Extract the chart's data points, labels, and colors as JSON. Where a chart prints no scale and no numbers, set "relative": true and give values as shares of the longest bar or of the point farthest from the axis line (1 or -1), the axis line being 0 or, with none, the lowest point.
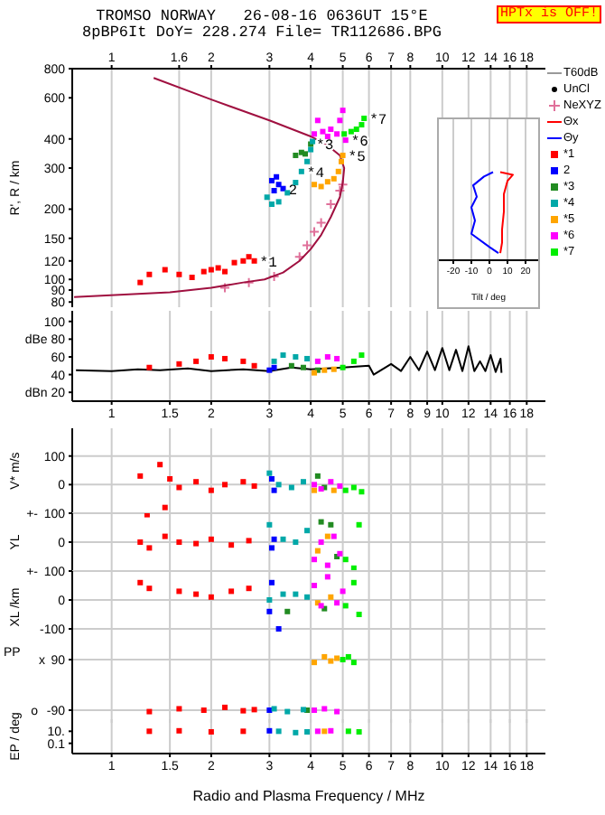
{
  "chart_data": [
    {
      "type": "scatter",
      "title": "TROMSO NORWAY   26-08-16 0636UT 15°E",
      "subtitle": "8pBP6It DoY= 228.274 File= TR112686.BPG",
      "annotations": [
        "HPTx is OFF!"
      ],
      "ylabel": "R', R / km",
      "log": "xy",
      "xlim": [
        0.76,
        20.5
      ],
      "ylim": [
        76,
        800
      ],
      "xticks": [
        1,
        1.6,
        2,
        3,
        4,
        5,
        6,
        7,
        8,
        10,
        12,
        14,
        16,
        18
      ],
      "yticks": [
        80,
        90,
        100,
        120,
        150,
        200,
        300,
        400,
        600,
        800
      ],
      "grid": "x",
      "legend": "right",
      "series": [
        {
          "name": "T60dB",
          "type": "line",
          "color": "#999999"
        },
        {
          "name": "UnCl",
          "type": "scatter",
          "marker": "circle",
          "color": "#000000"
        },
        {
          "name": "NeXYZ",
          "type": "scatter",
          "marker": "cross",
          "color": "#e0709a",
          "x": [
            2.2,
            2.6,
            3.1,
            3.7,
            3.9,
            4.1,
            4.3,
            4.6,
            4.9,
            5.0
          ],
          "values": [
            92,
            97,
            103,
            125,
            140,
            160,
            175,
            210,
            240,
            255
          ]
        },
        {
          "type": "line",
          "marker": "none",
          "color": "#a01040",
          "x": [
            0.77,
            1.5,
            2.0,
            2.5,
            2.9,
            3.3,
            3.7,
            4.0,
            4.3,
            4.6,
            4.9,
            5.0,
            5.05,
            4.9,
            4.5,
            4.0,
            3.0,
            2.0,
            1.34
          ],
          "values": [
            84,
            88,
            92,
            97,
            100,
            107,
            120,
            135,
            155,
            185,
            225,
            260,
            300,
            340,
            375,
            410,
            480,
            590,
            730
          ]
        },
        {
          "name": "*1",
          "marker": "square",
          "color": "#ff0000",
          "x": [
            1.22,
            1.3,
            1.45,
            1.6,
            1.75,
            1.9,
            2.0,
            2.1,
            2.2,
            2.35,
            2.5,
            2.6,
            2.7
          ],
          "values": [
            97,
            105,
            110,
            105,
            102,
            108,
            110,
            112,
            108,
            118,
            120,
            125,
            120
          ]
        },
        {
          "name": "2",
          "marker": "square",
          "color": "#0000ff",
          "x": [
            3.05,
            3.15,
            3.2,
            3.1,
            3.3
          ],
          "values": [
            265,
            275,
            255,
            240,
            245
          ]
        },
        {
          "name": "*3",
          "marker": "square",
          "color": "#228b22",
          "x": [
            3.6,
            3.75,
            3.85,
            4.0
          ],
          "values": [
            340,
            350,
            345,
            380
          ]
        },
        {
          "name": "*4",
          "marker": "square",
          "color": "#00a8a8",
          "x": [
            2.95,
            3.05,
            3.2,
            3.4,
            3.6,
            3.9,
            4.0,
            4.05,
            3.75
          ],
          "values": [
            225,
            210,
            215,
            235,
            260,
            320,
            360,
            390,
            290
          ]
        },
        {
          "name": "*5",
          "marker": "square",
          "color": "#ffa500",
          "x": [
            4.1,
            4.3,
            4.5,
            4.7,
            4.85,
            4.95,
            5.0
          ],
          "values": [
            255,
            250,
            262,
            270,
            290,
            320,
            340
          ]
        },
        {
          "name": "*6",
          "marker": "square",
          "color": "#ff00ff",
          "x": [
            4.1,
            4.2,
            4.35,
            4.5,
            4.6,
            4.8,
            4.9,
            5.0,
            5.1
          ],
          "values": [
            420,
            480,
            430,
            410,
            440,
            420,
            480,
            530,
            395
          ]
        },
        {
          "name": "*7",
          "marker": "square",
          "color": "#00ee00",
          "x": [
            5.05,
            5.3,
            5.5,
            5.7,
            5.8
          ],
          "values": [
            420,
            430,
            440,
            460,
            490
          ]
        }
      ]
    },
    {
      "type": "line",
      "xlabel": "Tilt / deg",
      "relative": true,
      "xlim": [
        -28,
        27
      ],
      "xticks": [
        -20,
        -10,
        0,
        10,
        20
      ],
      "grid": "x",
      "legend": "right",
      "series": [
        {
          "name": "Θx",
          "color": "#ff0000",
          "x": [
            6,
            7,
            7,
            8,
            8,
            10,
            13,
            6
          ],
          "values": [
            0.08,
            0.2,
            0.35,
            0.55,
            0.75,
            0.9,
            0.97,
            1.0
          ]
        },
        {
          "name": "Θy",
          "color": "#0000ff",
          "x": [
            5,
            0,
            -10,
            -8,
            -10,
            -7,
            -9,
            -3,
            2
          ],
          "values": [
            0.08,
            0.15,
            0.3,
            0.45,
            0.6,
            0.72,
            0.85,
            0.95,
            1.0
          ]
        }
      ]
    },
    {
      "type": "scatter",
      "log": "x",
      "xlim": [
        0.76,
        20.5
      ],
      "ylim": [
        10,
        112
      ],
      "xticks": [
        1,
        1.5,
        2,
        3,
        4,
        5,
        6,
        7,
        8,
        9,
        10,
        12,
        14,
        16,
        18
      ],
      "yticks": [
        100,
        {
          "value": 80,
          "label": "dBe 80"
        },
        60,
        40,
        {
          "value": 20,
          "label": "dBn 20"
        }
      ],
      "grid": "x",
      "series": [
        {
          "type": "line",
          "color": "#000000",
          "x": [
            0.78,
            1,
            1.2,
            1.4,
            1.7,
            2,
            2.5,
            3,
            3.5,
            4,
            5,
            6,
            6.2,
            7,
            7.5,
            8,
            8.5,
            9,
            9.5,
            10,
            10.5,
            11,
            11.5,
            12,
            12.5,
            13,
            13.5,
            14,
            14.5,
            15,
            15.1
          ],
          "values": [
            45,
            44,
            46,
            45,
            47,
            44,
            46,
            44,
            48,
            46,
            48,
            50,
            40,
            52,
            44,
            60,
            45,
            66,
            45,
            70,
            45,
            68,
            44,
            72,
            44,
            55,
            44,
            62,
            43,
            58,
            42
          ]
        },
        {
          "marker": "square",
          "color": "#ff0000",
          "x": [
            1.3,
            1.6,
            1.8,
            2.0,
            2.2,
            2.5,
            2.7
          ],
          "values": [
            48,
            52,
            55,
            60,
            58,
            55,
            50
          ]
        },
        {
          "marker": "square",
          "color": "#0000ff",
          "x": [
            3.0,
            3.1
          ],
          "values": [
            45,
            48
          ]
        },
        {
          "marker": "square",
          "color": "#00a8a8",
          "x": [
            3.1,
            3.3,
            3.6,
            3.9
          ],
          "values": [
            55,
            62,
            60,
            58
          ]
        },
        {
          "marker": "square",
          "color": "#228b22",
          "x": [
            3.5,
            3.8,
            4.2
          ],
          "values": [
            50,
            48,
            45
          ]
        },
        {
          "marker": "square",
          "color": "#ffa500",
          "x": [
            4.1,
            4.4,
            4.7
          ],
          "values": [
            42,
            45,
            46
          ]
        },
        {
          "marker": "square",
          "color": "#ff00ff",
          "x": [
            4.2,
            4.5,
            4.8
          ],
          "values": [
            55,
            60,
            58
          ]
        },
        {
          "marker": "square",
          "color": "#00ee00",
          "x": [
            5.0,
            5.4,
            5.7
          ],
          "values": [
            48,
            55,
            62
          ]
        }
      ]
    },
    {
      "type": "scatter",
      "ylabel": "V* m/s",
      "log": "x",
      "xlim": [
        0.76,
        20.5
      ],
      "ylim": [
        -100,
        197
      ],
      "xticks": [
        1,
        1.5,
        2,
        3,
        4,
        5,
        6,
        7,
        8,
        10,
        12,
        14,
        16,
        18
      ],
      "yticks": [
        100,
        0
      ],
      "grid": true,
      "tick_labels": "y",
      "series": [
        {
          "marker": "square",
          "color": "#ff0000",
          "x": [
            1.22,
            1.4,
            1.45,
            1.5,
            1.6,
            1.8,
            2.0,
            2.2,
            2.5,
            2.7
          ],
          "values": [
            30,
            70,
            -80,
            20,
            -10,
            10,
            -20,
            0,
            10,
            -5
          ]
        },
        {
          "marker": "square",
          "color": "#0000ff",
          "x": [
            3.05,
            3.1
          ],
          "values": [
            20,
            -20
          ]
        },
        {
          "marker": "square",
          "color": "#00a8a8",
          "x": [
            3.0,
            3.2,
            3.5,
            3.8
          ],
          "values": [
            40,
            0,
            -10,
            10
          ]
        },
        {
          "marker": "square",
          "color": "#228b22",
          "x": [
            4.2,
            4.4
          ],
          "values": [
            30,
            -10
          ]
        },
        {
          "marker": "square",
          "color": "#ffa500",
          "x": [
            4.1,
            4.7
          ],
          "values": [
            -20,
            -20
          ]
        },
        {
          "marker": "square",
          "color": "#ff00ff",
          "x": [
            4.1,
            4.3,
            4.6,
            4.9
          ],
          "values": [
            0,
            -15,
            10,
            -5
          ]
        },
        {
          "marker": "square",
          "color": "#00ee00",
          "x": [
            5.1,
            5.4,
            5.7
          ],
          "values": [
            -20,
            -10,
            -25
          ]
        }
      ]
    },
    {
      "type": "scatter",
      "ylabel": "YL",
      "annotations": [
        "+-"
      ],
      "log": "x",
      "xlim": [
        0.76,
        20.5
      ],
      "ylim": [
        -100,
        100
      ],
      "xticks": [
        1,
        1.5,
        2,
        3,
        4,
        5,
        6,
        7,
        8,
        10,
        12,
        14,
        16,
        18
      ],
      "yticks": [
        100,
        0
      ],
      "grid": true,
      "tick_labels": "y",
      "series": [
        {
          "marker": "square",
          "color": "#ff0000",
          "x": [
            1.22,
            1.28,
            1.3,
            1.45,
            1.6,
            1.8,
            2.0,
            2.3,
            2.6
          ],
          "values": [
            0,
            95,
            -20,
            20,
            0,
            -5,
            10,
            -10,
            5
          ]
        },
        {
          "marker": "square",
          "color": "#0000ff",
          "x": [
            3.05,
            3.1
          ],
          "values": [
            -20,
            10
          ]
        },
        {
          "marker": "square",
          "color": "#00a8a8",
          "x": [
            3.0,
            3.3,
            3.6,
            3.9
          ],
          "values": [
            60,
            10,
            0,
            40
          ]
        },
        {
          "marker": "square",
          "color": "#228b22",
          "x": [
            4.3,
            4.6,
            4.8
          ],
          "values": [
            70,
            60,
            -50
          ]
        },
        {
          "marker": "square",
          "color": "#ffa500",
          "x": [
            4.2,
            4.5
          ],
          "values": [
            -30,
            20
          ]
        },
        {
          "marker": "square",
          "color": "#ff00ff",
          "x": [
            4.1,
            4.3,
            4.5,
            4.7,
            4.9
          ],
          "values": [
            -60,
            0,
            -80,
            20,
            -40
          ]
        },
        {
          "marker": "square",
          "color": "#00ee00",
          "x": [
            5.1,
            5.4,
            5.6
          ],
          "values": [
            -60,
            -90,
            60
          ]
        }
      ]
    },
    {
      "type": "scatter",
      "ylabel": "XL /km",
      "annotations": [
        "+-"
      ],
      "log": "x",
      "xlim": [
        0.76,
        20.5
      ],
      "ylim": [
        -150,
        100
      ],
      "xticks": [
        1,
        1.5,
        2,
        3,
        4,
        5,
        6,
        7,
        8,
        10,
        12,
        14,
        16,
        18
      ],
      "yticks": [
        100,
        0,
        -100
      ],
      "grid": true,
      "tick_labels": "y",
      "series": [
        {
          "marker": "square",
          "color": "#ff0000",
          "x": [
            1.22,
            1.3,
            1.6,
            1.8,
            2.0,
            2.3,
            2.6
          ],
          "values": [
            60,
            40,
            30,
            20,
            10,
            30,
            40
          ]
        },
        {
          "marker": "square",
          "color": "#0000ff",
          "x": [
            3.0,
            3.05,
            3.2
          ],
          "values": [
            -40,
            60,
            -100
          ]
        },
        {
          "marker": "square",
          "color": "#00a8a8",
          "x": [
            3.0,
            3.3,
            3.6,
            3.9
          ],
          "values": [
            0,
            20,
            20,
            10
          ]
        },
        {
          "marker": "square",
          "color": "#228b22",
          "x": [
            3.4,
            4.4
          ],
          "values": [
            -40,
            -30
          ]
        },
        {
          "marker": "square",
          "color": "#ffa500",
          "x": [
            4.2,
            4.6
          ],
          "values": [
            -10,
            10
          ]
        },
        {
          "marker": "square",
          "color": "#ff00ff",
          "x": [
            4.1,
            4.3,
            4.5,
            4.8,
            5.0
          ],
          "values": [
            50,
            -20,
            80,
            -10,
            30
          ]
        },
        {
          "marker": "square",
          "color": "#00ee00",
          "x": [
            5.1,
            5.4,
            5.6
          ],
          "values": [
            -20,
            60,
            -50
          ]
        }
      ]
    },
    {
      "type": "scatter",
      "ylabel": "PP",
      "annotations": [
        "x",
        "o"
      ],
      "log": "x",
      "xlim": [
        0.76,
        20.5
      ],
      "ylim": [
        -135,
        148
      ],
      "xticks": [
        1,
        1.5,
        2,
        3,
        4,
        5,
        6,
        7,
        8,
        10,
        12,
        14,
        16,
        18
      ],
      "yticks": [
        90,
        -90
      ],
      "grid": true,
      "tick_labels": "y",
      "series": [
        {
          "marker": "square",
          "color": "#ff0000",
          "x": [
            1.3,
            1.6,
            1.9,
            2.2,
            2.5,
            2.7
          ],
          "values": [
            -95,
            -85,
            -90,
            -80,
            -92,
            -88
          ]
        },
        {
          "marker": "square",
          "color": "#0000ff",
          "x": [
            3.0
          ],
          "values": [
            -90
          ]
        },
        {
          "marker": "square",
          "color": "#228b22",
          "x": [
            3.9
          ],
          "values": [
            -90
          ]
        },
        {
          "marker": "square",
          "color": "#00a8a8",
          "x": [
            3.1,
            3.4,
            3.8
          ],
          "values": [
            -85,
            -95,
            -88
          ]
        },
        {
          "marker": "square",
          "color": "#ffa500",
          "x": [
            4.1,
            4.4,
            4.6,
            4.8
          ],
          "values": [
            80,
            100,
            85,
            95
          ]
        },
        {
          "marker": "square",
          "color": "#ff00ff",
          "x": [
            4.1,
            4.4,
            4.8
          ],
          "values": [
            -90,
            -85,
            -95
          ]
        },
        {
          "marker": "square",
          "color": "#00ee00",
          "x": [
            5.0,
            5.2,
            5.4
          ],
          "values": [
            90,
            100,
            80
          ]
        }
      ]
    },
    {
      "type": "scatter",
      "ylabel": "EP / deg",
      "xlabel": "Radio and Plasma Frequency / MHz",
      "log": "xy",
      "xlim": [
        0.76,
        20.5
      ],
      "ylim": [
        0.002,
        1000
      ],
      "xticks": [
        1,
        1.5,
        2,
        3,
        4,
        5,
        6,
        7,
        8,
        10,
        12,
        14,
        16,
        18
      ],
      "yticks": [
        {
          "value": 10,
          "label": "10."
        },
        0.1
      ],
      "grid": "x",
      "series": [
        {
          "marker": "square",
          "color": "#ff0000",
          "x": [
            1.3,
            1.6,
            2.0,
            2.5
          ],
          "values": [
            10,
            12,
            8,
            10
          ]
        },
        {
          "marker": "square",
          "color": "#0000ff",
          "x": [
            3.0
          ],
          "values": [
            12
          ]
        },
        {
          "marker": "square",
          "color": "#00a8a8",
          "x": [
            3.2,
            3.6,
            3.9
          ],
          "values": [
            10,
            6,
            8
          ]
        },
        {
          "marker": "square",
          "color": "#ffa500",
          "x": [
            4.4
          ],
          "values": [
            10
          ]
        },
        {
          "marker": "square",
          "color": "#ff00ff",
          "x": [
            4.2,
            4.6
          ],
          "values": [
            10,
            12
          ]
        },
        {
          "marker": "square",
          "color": "#00ee00",
          "x": [
            5.2,
            5.6
          ],
          "values": [
            10,
            8
          ]
        }
      ]
    }
  ]
}
